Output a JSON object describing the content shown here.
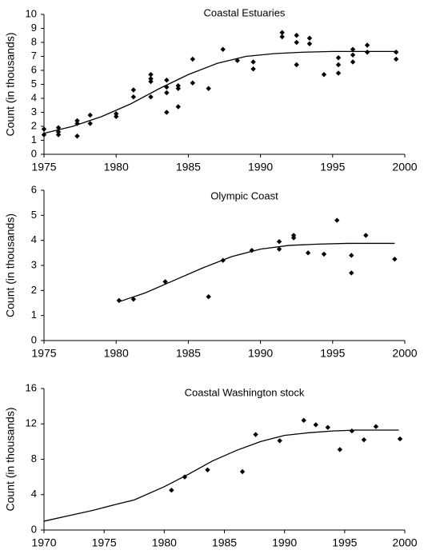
{
  "chart_data": [
    {
      "type": "scatter",
      "title": "Coastal Estuaries",
      "ylabel": "Count (in thousands)",
      "xlim": [
        1975,
        2000
      ],
      "xticks": [
        1975,
        1980,
        1985,
        1990,
        1995,
        2000
      ],
      "ylim": [
        0,
        10
      ],
      "yticks": [
        0,
        1,
        2,
        3,
        4,
        5,
        6,
        7,
        8,
        9,
        10
      ],
      "grid": false,
      "series": [
        {
          "type": "scatter",
          "color": "#000000",
          "x": [
            1975,
            1975,
            1976,
            1976,
            1976,
            1977.3,
            1977.3,
            1977.3,
            1978.2,
            1978.2,
            1980,
            1980,
            1981.2,
            1981.2,
            1982.4,
            1982.4,
            1982.4,
            1982.4,
            1983.5,
            1983.5,
            1983.5,
            1983.5,
            1984.3,
            1984.3,
            1984.3,
            1985.3,
            1985.3,
            1986.4,
            1987.4,
            1988.4,
            1989.5,
            1989.5,
            1991.5,
            1991.5,
            1992.5,
            1992.5,
            1992.5,
            1993.4,
            1993.4,
            1994.4,
            1995.4,
            1995.4,
            1995.4,
            1996.4,
            1996.4,
            1996.4,
            1997.4,
            1997.4,
            1999.4,
            1999.4
          ],
          "values": [
            1.8,
            1.4,
            1.9,
            1.6,
            1.4,
            2.4,
            2.2,
            1.3,
            2.8,
            2.2,
            2.9,
            2.7,
            4.6,
            4.1,
            5.7,
            5.4,
            5.2,
            4.1,
            5.3,
            4.8,
            4.4,
            3.0,
            4.9,
            4.7,
            3.4,
            6.8,
            5.1,
            4.7,
            7.5,
            6.7,
            6.6,
            6.1,
            8.7,
            8.4,
            8.5,
            8.0,
            6.4,
            8.3,
            7.9,
            5.7,
            6.9,
            6.4,
            5.8,
            7.5,
            7.1,
            6.6,
            7.8,
            7.3,
            7.3,
            6.8
          ]
        },
        {
          "type": "line",
          "color": "#000000",
          "x": [
            1975,
            1977,
            1979,
            1981,
            1983,
            1985,
            1987,
            1989,
            1991,
            1993,
            1995,
            1997,
            1999.5
          ],
          "values": [
            1.5,
            2.0,
            2.7,
            3.6,
            4.7,
            5.7,
            6.5,
            7.0,
            7.2,
            7.3,
            7.35,
            7.35,
            7.35
          ]
        }
      ]
    },
    {
      "type": "scatter",
      "title": "Olympic Coast",
      "ylabel": "Count (in thousands)",
      "xlim": [
        1975,
        2000
      ],
      "xticks": [
        1975,
        1980,
        1985,
        1990,
        1995,
        2000
      ],
      "ylim": [
        0,
        6
      ],
      "yticks": [
        0,
        1,
        2,
        3,
        4,
        5,
        6
      ],
      "grid": false,
      "series": [
        {
          "type": "scatter",
          "color": "#000000",
          "x": [
            1980.2,
            1981.2,
            1983.4,
            1986.4,
            1987.4,
            1989.4,
            1991.3,
            1991.3,
            1992.3,
            1992.3,
            1993.3,
            1994.4,
            1995.3,
            1996.3,
            1996.3,
            1997.3,
            1999.3
          ],
          "values": [
            1.6,
            1.65,
            2.35,
            1.75,
            3.2,
            3.6,
            3.95,
            3.65,
            4.2,
            4.1,
            3.5,
            3.45,
            4.8,
            3.4,
            2.7,
            4.2,
            3.25
          ]
        },
        {
          "type": "line",
          "color": "#000000",
          "x": [
            1980.2,
            1982,
            1984,
            1986,
            1988,
            1990,
            1992,
            1994,
            1996,
            1999.3
          ],
          "values": [
            1.55,
            1.9,
            2.4,
            2.9,
            3.35,
            3.65,
            3.8,
            3.85,
            3.88,
            3.88
          ]
        }
      ]
    },
    {
      "type": "scatter",
      "title": "Coastal Washington stock",
      "ylabel": "Count (in thousands)",
      "xlim": [
        1970,
        2000
      ],
      "xticks": [
        1970,
        1975,
        1980,
        1985,
        1990,
        1995,
        2000
      ],
      "ylim": [
        0,
        16
      ],
      "yticks": [
        0,
        4,
        8,
        12,
        16
      ],
      "grid": false,
      "series": [
        {
          "type": "scatter",
          "color": "#000000",
          "x": [
            1980.6,
            1981.7,
            1983.6,
            1986.5,
            1987.6,
            1989.6,
            1991.6,
            1992.6,
            1993.6,
            1994.6,
            1995.6,
            1996.6,
            1997.6,
            1999.6
          ],
          "values": [
            4.5,
            6.0,
            6.8,
            6.6,
            10.8,
            10.1,
            12.4,
            11.9,
            11.6,
            9.1,
            11.2,
            10.2,
            11.7,
            10.3
          ]
        },
        {
          "type": "line",
          "color": "#000000",
          "x": [
            1970,
            1972,
            1974,
            1976,
            1977.5,
            1980,
            1982,
            1984,
            1986,
            1988,
            1990,
            1992,
            1994,
            1996,
            1999.5
          ],
          "values": [
            1.0,
            1.6,
            2.2,
            2.9,
            3.4,
            4.9,
            6.3,
            7.8,
            9.0,
            10.0,
            10.7,
            11.0,
            11.2,
            11.3,
            11.3
          ]
        }
      ]
    }
  ]
}
